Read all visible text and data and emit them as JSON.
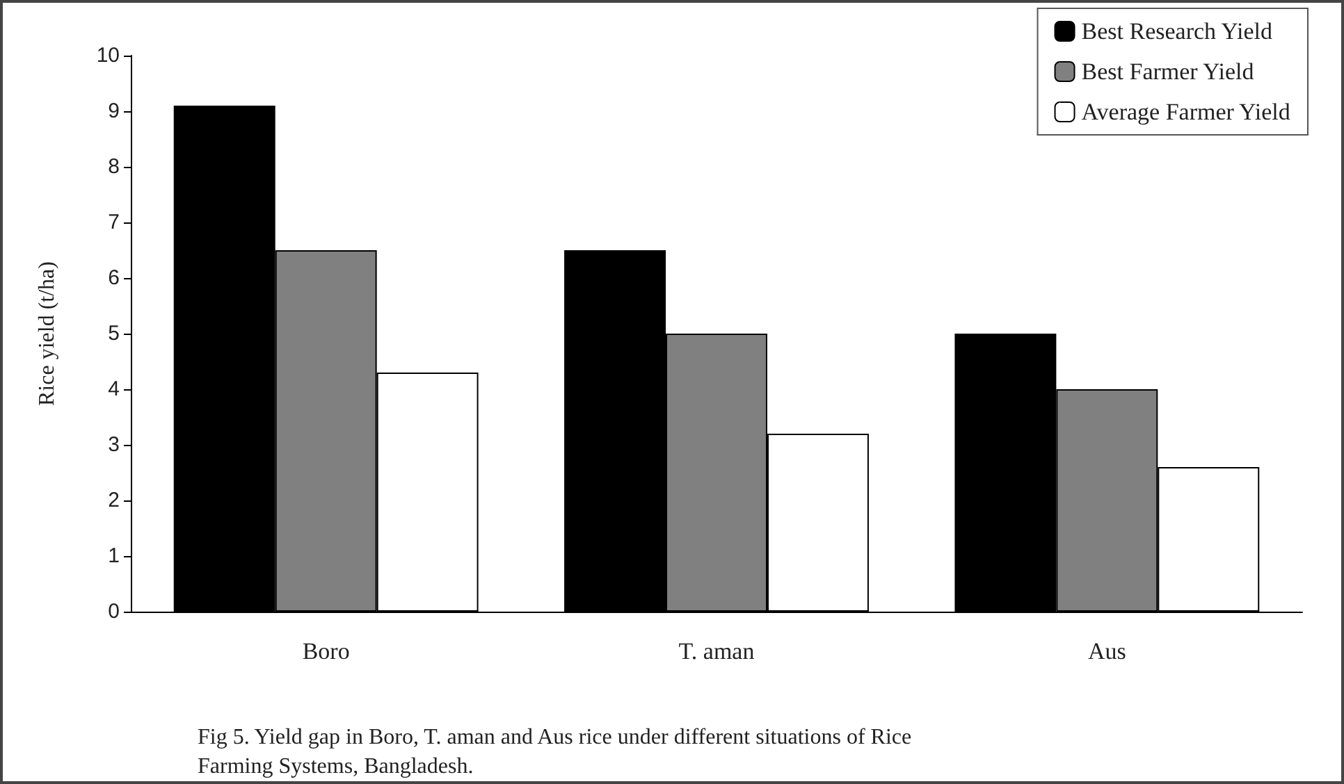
{
  "chart_data": {
    "type": "bar",
    "ylabel": "Rice yield (t/ha)",
    "categories": [
      "Boro",
      "T. aman",
      "Aus"
    ],
    "series": [
      {
        "name": "Best Research Yield",
        "color": "#000000",
        "values": [
          9.1,
          6.5,
          5.0
        ]
      },
      {
        "name": "Best Farmer Yield",
        "color": "#808080",
        "values": [
          6.5,
          5.0,
          4.0
        ]
      },
      {
        "name": "Average Farmer Yield",
        "color": "#ffffff",
        "values": [
          4.3,
          3.2,
          2.6
        ]
      }
    ],
    "ylim": [
      0,
      10
    ],
    "yticks": [
      0,
      1,
      2,
      3,
      4,
      5,
      6,
      7,
      8,
      9,
      10
    ],
    "grid": false,
    "legend": "top right",
    "annotations": [
      "Fig 5. Yield gap in Boro, T. aman and Aus rice under different situations of Rice Farming Systems, Bangladesh."
    ]
  }
}
